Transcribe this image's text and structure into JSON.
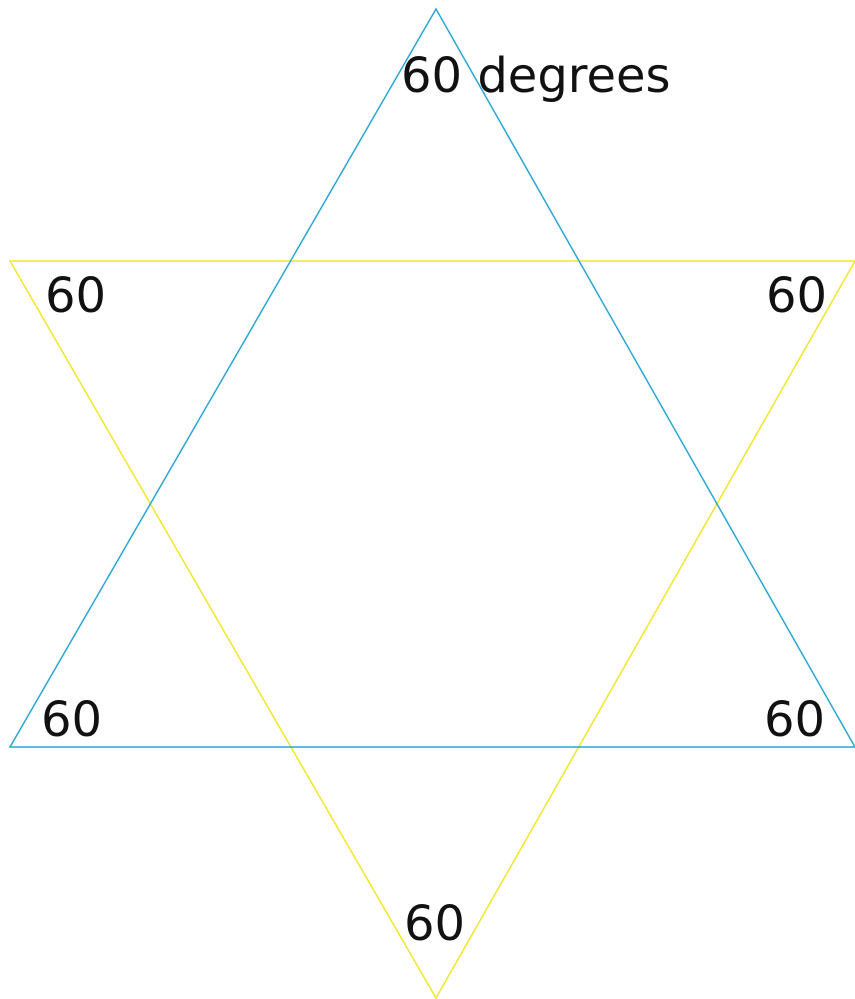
{
  "colors": {
    "upward_triangle": "#2aa6d6",
    "downward_triangle": "#f2e628",
    "label_text": "#111111",
    "background": "#ffffff"
  },
  "labels": {
    "top": "60 degrees",
    "upper_left": "60",
    "upper_right": "60",
    "lower_left": "60",
    "lower_right": "60",
    "bottom": "60"
  }
}
